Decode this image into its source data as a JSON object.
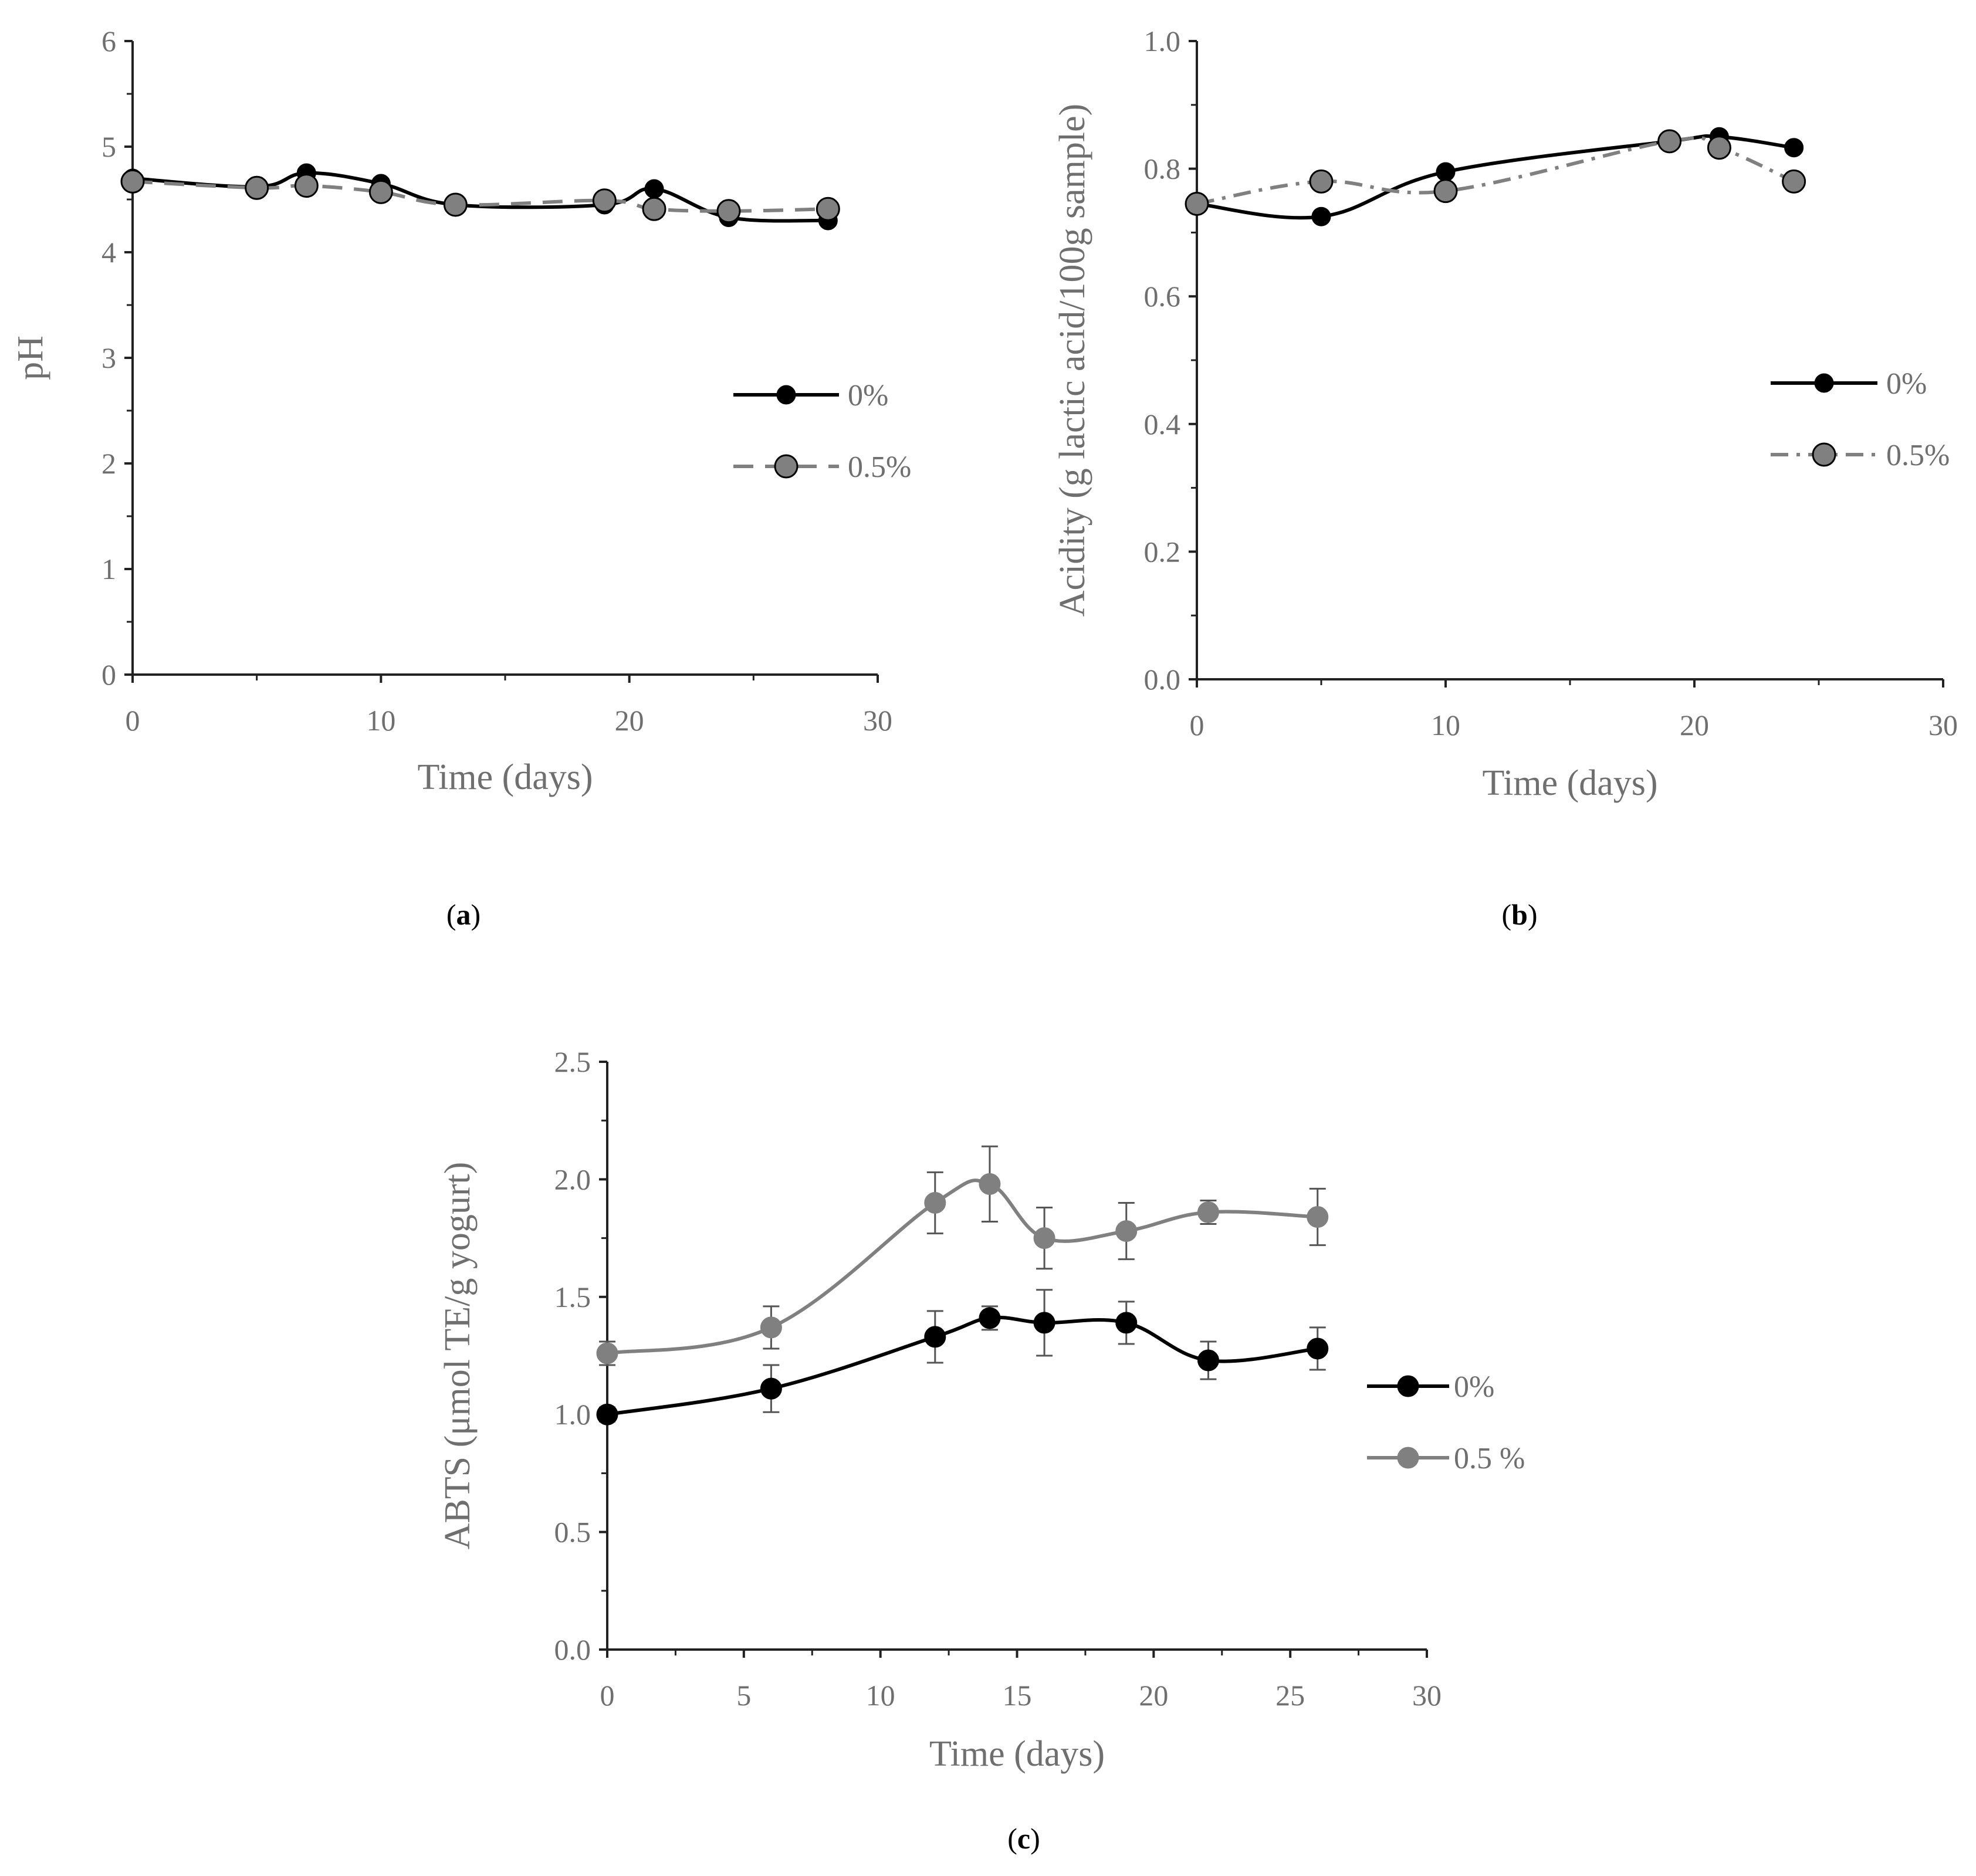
{
  "figure": {
    "panel_labels": [
      {
        "open": "(",
        "letter": "a",
        "close": ")"
      },
      {
        "open": "(",
        "letter": "b",
        "close": ")"
      },
      {
        "open": "(",
        "letter": "c",
        "close": ")"
      }
    ]
  },
  "chart_data": [
    {
      "id": "a",
      "type": "line",
      "ylabel": "pH",
      "xlabel": "Time (days)",
      "xlim": [
        0,
        30
      ],
      "ylim": [
        0,
        6
      ],
      "xticks": [
        0,
        10,
        20,
        30
      ],
      "yticks": [
        0,
        1,
        2,
        3,
        4,
        5,
        6
      ],
      "ytick_labels": [
        "0",
        "1",
        "2",
        "3",
        "4",
        "5",
        "6"
      ],
      "legend_position": "right",
      "series": [
        {
          "name": "0%",
          "style": "solid",
          "color": "#000000",
          "marker_fill": "#000000",
          "x": [
            0,
            5,
            7,
            10,
            13,
            19,
            21,
            24,
            28
          ],
          "y": [
            4.7,
            4.62,
            4.75,
            4.65,
            4.45,
            4.45,
            4.6,
            4.33,
            4.3
          ]
        },
        {
          "name": "0.5%",
          "style": "dashed",
          "color": "#808080",
          "marker_fill": "#808080",
          "x": [
            0,
            5,
            7,
            10,
            13,
            19,
            21,
            24,
            28
          ],
          "y": [
            4.67,
            4.61,
            4.63,
            4.57,
            4.45,
            4.49,
            4.41,
            4.39,
            4.41
          ]
        }
      ]
    },
    {
      "id": "b",
      "type": "line",
      "ylabel": "Acidity (g lactic acid/100g sample)",
      "xlabel": "Time (days)",
      "xlim": [
        0,
        30
      ],
      "ylim": [
        0,
        1.0
      ],
      "xticks": [
        0,
        10,
        20,
        30
      ],
      "yticks": [
        0,
        0.2,
        0.4,
        0.6,
        0.8,
        1.0
      ],
      "ytick_labels": [
        "0.0",
        "0.2",
        "0.4",
        "0.6",
        "0.8",
        "1.0"
      ],
      "legend_position": "right",
      "series": [
        {
          "name": "0%",
          "style": "solid",
          "color": "#000000",
          "marker_fill": "#000000",
          "x": [
            0,
            5,
            10,
            19,
            21,
            24
          ],
          "y": [
            0.745,
            0.725,
            0.795,
            0.843,
            0.85,
            0.833
          ]
        },
        {
          "name": "0.5%",
          "style": "dashdot",
          "color": "#808080",
          "marker_fill": "#808080",
          "x": [
            0,
            5,
            10,
            19,
            21,
            24
          ],
          "y": [
            0.745,
            0.78,
            0.765,
            0.843,
            0.833,
            0.78
          ]
        }
      ]
    },
    {
      "id": "c",
      "type": "line",
      "ylabel": "ABTS (μmol TE/g yogurt)",
      "xlabel": "Time (days)",
      "xlim": [
        0,
        30
      ],
      "ylim": [
        0,
        2.5
      ],
      "xticks": [
        0,
        5,
        10,
        15,
        20,
        25,
        30
      ],
      "yticks": [
        0,
        0.5,
        1.0,
        1.5,
        2.0,
        2.5
      ],
      "ytick_labels": [
        "0.0",
        "0.5",
        "1.0",
        "1.5",
        "2.0",
        "2.5"
      ],
      "legend_position": "right",
      "series": [
        {
          "name": "0%",
          "style": "solid",
          "color": "#000000",
          "marker_fill": "#000000",
          "x": [
            0,
            6,
            12,
            14,
            16,
            19,
            22,
            26
          ],
          "y": [
            1.0,
            1.11,
            1.33,
            1.41,
            1.39,
            1.39,
            1.23,
            1.28
          ],
          "err": [
            0.03,
            0.1,
            0.11,
            0.05,
            0.14,
            0.09,
            0.08,
            0.09
          ]
        },
        {
          "name": "0.5 %",
          "style": "solid",
          "color": "#808080",
          "marker_fill": "#808080",
          "x": [
            0,
            6,
            12,
            14,
            16,
            19,
            22,
            26
          ],
          "y": [
            1.26,
            1.37,
            1.9,
            1.98,
            1.75,
            1.78,
            1.86,
            1.84
          ],
          "err": [
            0.05,
            0.09,
            0.13,
            0.16,
            0.13,
            0.12,
            0.05,
            0.12
          ]
        }
      ]
    }
  ]
}
